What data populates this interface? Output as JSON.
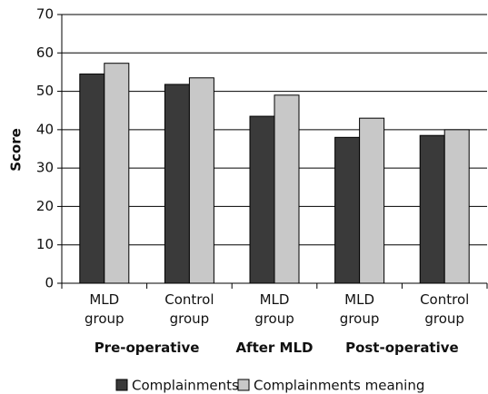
{
  "chart_data": {
    "type": "bar",
    "y_label": "Score",
    "categories": [
      "MLD group",
      "Control group",
      "MLD group",
      "MLD group",
      "Control group"
    ],
    "groups": [
      {
        "name": "Pre-operative",
        "count": 2
      },
      {
        "name": "After MLD",
        "count": 1
      },
      {
        "name": "Post-operative",
        "count": 2
      }
    ],
    "series": [
      {
        "name": "Complainments",
        "color": "#3a3a3a",
        "values": [
          54.5,
          51.8,
          43.5,
          38,
          38.5
        ]
      },
      {
        "name": "Complainments meaning",
        "color": "#c8c8c8",
        "values": [
          57.3,
          53.5,
          49,
          43,
          40
        ]
      }
    ],
    "ylim": [
      0,
      70
    ],
    "yticks": [
      0,
      10,
      20,
      30,
      40,
      50,
      60,
      70
    ],
    "grid": true
  }
}
